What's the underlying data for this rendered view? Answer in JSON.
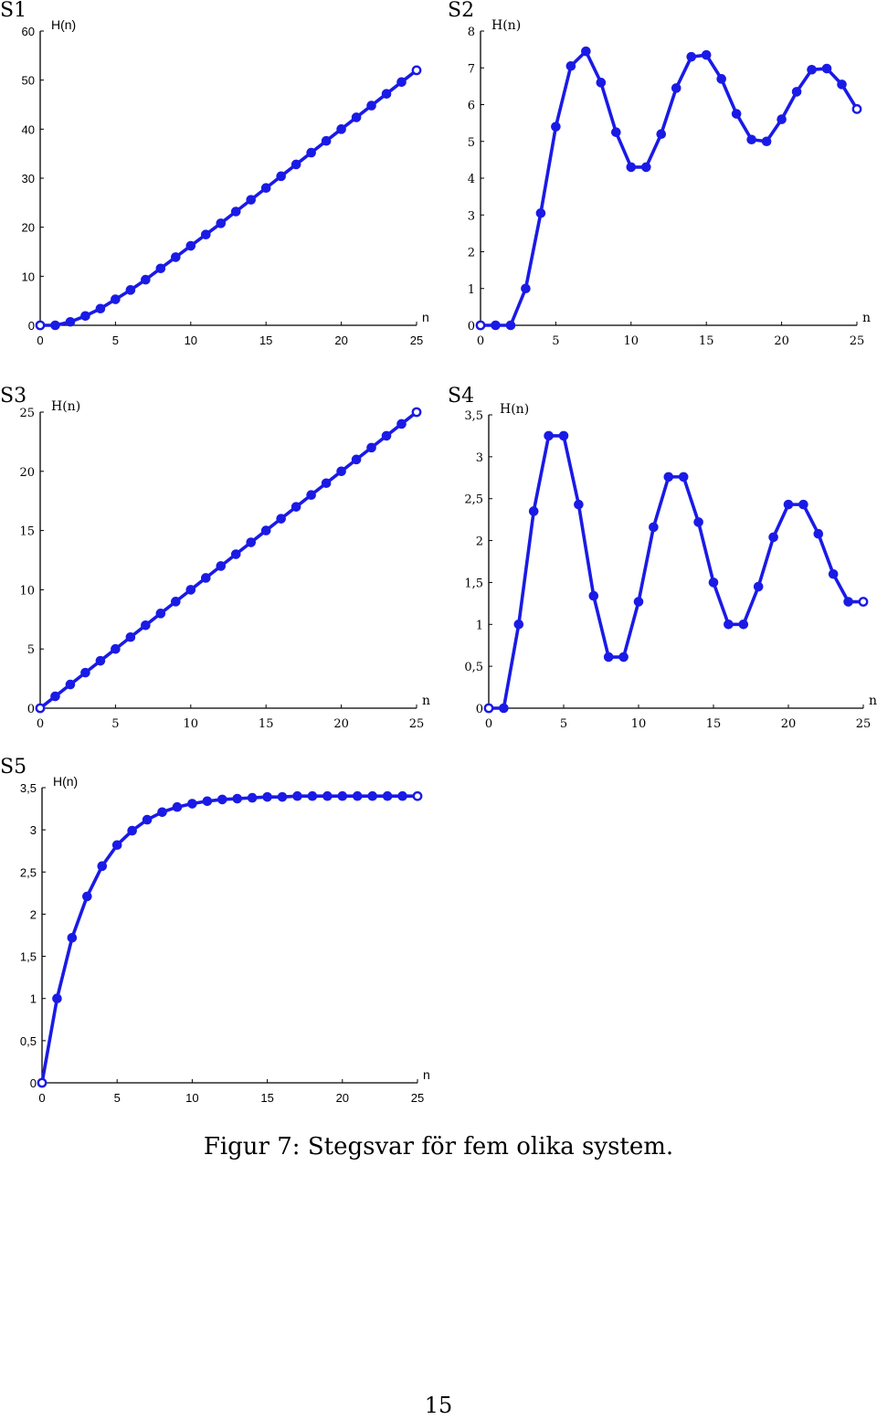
{
  "series_color": "#1a1ae6",
  "chart_data": [
    {
      "panel": "S1",
      "type": "line",
      "xlabel": "n",
      "ylabel": "H(n)",
      "xlim": [
        0,
        25
      ],
      "ylim": [
        0,
        60
      ],
      "xticks": [
        0,
        5,
        10,
        15,
        20,
        25
      ],
      "yticks": [
        0,
        10,
        20,
        30,
        40,
        50,
        60
      ],
      "ytick_labels": [
        "0",
        "10",
        "20",
        "30",
        "40",
        "50",
        "60"
      ],
      "grid": false,
      "x": [
        0,
        1,
        2,
        3,
        4,
        5,
        6,
        7,
        8,
        9,
        10,
        11,
        12,
        13,
        14,
        15,
        16,
        17,
        18,
        19,
        20,
        21,
        22,
        23,
        24,
        25
      ],
      "y": [
        0,
        0,
        0.7,
        1.9,
        3.4,
        5.3,
        7.2,
        9.3,
        11.6,
        13.9,
        16.2,
        18.5,
        20.8,
        23.2,
        25.6,
        28.0,
        30.4,
        32.8,
        35.2,
        37.6,
        40.0,
        42.4,
        44.8,
        47.2,
        49.6,
        52.0
      ]
    },
    {
      "panel": "S2",
      "type": "line",
      "xlabel": "n",
      "ylabel": "H(n)",
      "xlim": [
        0,
        25
      ],
      "ylim": [
        0,
        8
      ],
      "xticks": [
        0,
        5,
        10,
        15,
        20,
        25
      ],
      "yticks": [
        0,
        1,
        2,
        3,
        4,
        5,
        6,
        7,
        8
      ],
      "ytick_labels": [
        "0",
        "1",
        "2",
        "3",
        "4",
        "5",
        "6",
        "7",
        "8"
      ],
      "grid": false,
      "x": [
        0,
        1,
        2,
        3,
        4,
        5,
        6,
        7,
        8,
        9,
        10,
        11,
        12,
        13,
        14,
        15,
        16,
        17,
        18,
        19,
        20,
        21,
        22,
        23,
        24,
        25
      ],
      "y": [
        0,
        0,
        0,
        1.0,
        3.05,
        5.4,
        7.05,
        7.45,
        6.6,
        5.25,
        4.3,
        4.3,
        5.2,
        6.45,
        7.3,
        7.35,
        6.7,
        5.75,
        5.05,
        5.0,
        5.6,
        6.35,
        6.95,
        6.98,
        6.55,
        5.88
      ]
    },
    {
      "panel": "S3",
      "type": "line",
      "xlabel": "n",
      "ylabel": "H(n)",
      "xlim": [
        0,
        25
      ],
      "ylim": [
        0,
        25
      ],
      "xticks": [
        0,
        5,
        10,
        15,
        20,
        25
      ],
      "yticks": [
        0,
        5,
        10,
        15,
        20,
        25
      ],
      "ytick_labels": [
        "0",
        "5",
        "10",
        "15",
        "20",
        "25"
      ],
      "grid": false,
      "x": [
        0,
        1,
        2,
        3,
        4,
        5,
        6,
        7,
        8,
        9,
        10,
        11,
        12,
        13,
        14,
        15,
        16,
        17,
        18,
        19,
        20,
        21,
        22,
        23,
        24,
        25
      ],
      "y": [
        0,
        1,
        2,
        3,
        4,
        5,
        6,
        7,
        8,
        9,
        10,
        11,
        12,
        13,
        14,
        15,
        16,
        17,
        18,
        19,
        20,
        21,
        22,
        23,
        24,
        25
      ]
    },
    {
      "panel": "S4",
      "type": "line",
      "xlabel": "n",
      "ylabel": "H(n)",
      "xlim": [
        0,
        25
      ],
      "ylim": [
        0,
        3.5
      ],
      "xticks": [
        0,
        5,
        10,
        15,
        20,
        25
      ],
      "yticks": [
        0,
        0.5,
        1,
        1.5,
        2,
        2.5,
        3,
        3.5
      ],
      "ytick_labels": [
        "0",
        "0,5",
        "1",
        "1,5",
        "2",
        "2,5",
        "3",
        "3,5"
      ],
      "grid": false,
      "x": [
        0,
        1,
        2,
        3,
        4,
        5,
        6,
        7,
        8,
        9,
        10,
        11,
        12,
        13,
        14,
        15,
        16,
        17,
        18,
        19,
        20,
        21,
        22,
        23,
        24,
        25
      ],
      "y": [
        0,
        0,
        1.0,
        2.35,
        3.25,
        3.25,
        2.43,
        1.34,
        0.61,
        0.61,
        1.27,
        2.16,
        2.76,
        2.76,
        2.22,
        1.5,
        1.0,
        1.0,
        1.45,
        2.04,
        2.43,
        2.43,
        2.08,
        1.6,
        1.27,
        1.27
      ]
    },
    {
      "panel": "S5",
      "type": "line",
      "xlabel": "n",
      "ylabel": "H(n)",
      "xlim": [
        0,
        25
      ],
      "ylim": [
        0,
        3.5
      ],
      "xticks": [
        0,
        5,
        10,
        15,
        20,
        25
      ],
      "yticks": [
        0,
        0.5,
        1,
        1.5,
        2,
        2.5,
        3,
        3.5
      ],
      "ytick_labels": [
        "0",
        "0,5",
        "1",
        "1,5",
        "2",
        "2,5",
        "3",
        "3,5"
      ],
      "grid": false,
      "x": [
        0,
        1,
        2,
        3,
        4,
        5,
        6,
        7,
        8,
        9,
        10,
        11,
        12,
        13,
        14,
        15,
        16,
        17,
        18,
        19,
        20,
        21,
        22,
        23,
        24,
        25
      ],
      "y": [
        0,
        1.0,
        1.72,
        2.21,
        2.57,
        2.82,
        2.99,
        3.12,
        3.21,
        3.27,
        3.31,
        3.34,
        3.36,
        3.37,
        3.38,
        3.39,
        3.39,
        3.4,
        3.4,
        3.4,
        3.4,
        3.4,
        3.4,
        3.4,
        3.4,
        3.4
      ]
    }
  ],
  "caption": "Figur 7: Stegsvar för fem olika system.",
  "page_number": "15"
}
